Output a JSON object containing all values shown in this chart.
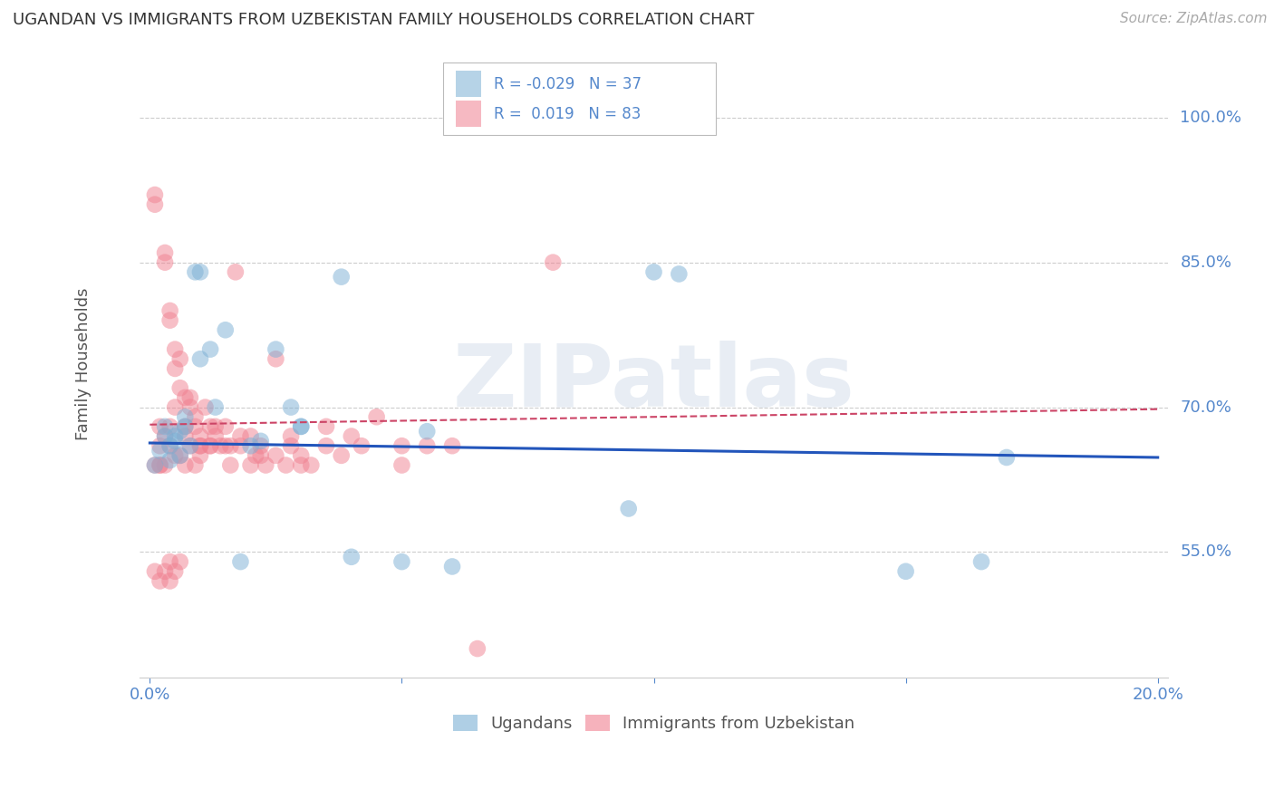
{
  "title": "UGANDAN VS IMMIGRANTS FROM UZBEKISTAN FAMILY HOUSEHOLDS CORRELATION CHART",
  "source": "Source: ZipAtlas.com",
  "ylabel": "Family Households",
  "watermark": "ZIPatlas",
  "ugandan_color": "#7bafd4",
  "uzbek_color": "#f08090",
  "trendline_ugandan_color": "#2255bb",
  "trendline_uzbek_color": "#cc4466",
  "grid_color": "#cccccc",
  "background_color": "#ffffff",
  "title_color": "#333333",
  "tick_color": "#5588cc",
  "xlim": [
    -0.002,
    0.202
  ],
  "ylim": [
    0.42,
    1.07
  ],
  "ytick_positions": [
    0.55,
    0.7,
    0.85,
    1.0
  ],
  "ytick_labels": [
    "55.0%",
    "70.0%",
    "85.0%",
    "100.0%"
  ],
  "xtick_positions": [
    0.0,
    0.05,
    0.1,
    0.15,
    0.2
  ],
  "xtick_labels": [
    "0.0%",
    "",
    "",
    "",
    "20.0%"
  ],
  "trendline_ugandan_x0": 0.0,
  "trendline_ugandan_x1": 0.2,
  "trendline_ugandan_y0": 0.663,
  "trendline_ugandan_y1": 0.648,
  "trendline_uzbek_x0": 0.0,
  "trendline_uzbek_x1": 0.2,
  "trendline_uzbek_y0": 0.682,
  "trendline_uzbek_y1": 0.698,
  "ugandan_x": [
    0.001,
    0.002,
    0.003,
    0.003,
    0.004,
    0.004,
    0.005,
    0.005,
    0.006,
    0.006,
    0.007,
    0.007,
    0.008,
    0.009,
    0.01,
    0.01,
    0.012,
    0.013,
    0.015,
    0.018,
    0.02,
    0.022,
    0.025,
    0.028,
    0.03,
    0.03,
    0.038,
    0.04,
    0.05,
    0.055,
    0.06,
    0.095,
    0.1,
    0.105,
    0.15,
    0.165,
    0.17
  ],
  "ugandan_y": [
    0.64,
    0.655,
    0.67,
    0.68,
    0.66,
    0.645,
    0.665,
    0.67,
    0.675,
    0.65,
    0.68,
    0.69,
    0.66,
    0.84,
    0.84,
    0.75,
    0.76,
    0.7,
    0.78,
    0.54,
    0.66,
    0.665,
    0.76,
    0.7,
    0.68,
    0.68,
    0.835,
    0.545,
    0.54,
    0.675,
    0.535,
    0.595,
    0.84,
    0.838,
    0.53,
    0.54,
    0.648
  ],
  "uzbek_x": [
    0.001,
    0.001,
    0.001,
    0.002,
    0.002,
    0.002,
    0.003,
    0.003,
    0.003,
    0.004,
    0.004,
    0.004,
    0.004,
    0.005,
    0.005,
    0.005,
    0.005,
    0.006,
    0.006,
    0.007,
    0.007,
    0.008,
    0.008,
    0.009,
    0.009,
    0.01,
    0.01,
    0.011,
    0.012,
    0.012,
    0.013,
    0.014,
    0.015,
    0.016,
    0.017,
    0.018,
    0.02,
    0.021,
    0.022,
    0.023,
    0.025,
    0.027,
    0.028,
    0.03,
    0.032,
    0.035,
    0.038,
    0.04,
    0.042,
    0.045,
    0.05,
    0.05,
    0.055,
    0.06,
    0.065,
    0.08,
    0.001,
    0.002,
    0.002,
    0.003,
    0.003,
    0.004,
    0.004,
    0.005,
    0.006,
    0.006,
    0.007,
    0.007,
    0.008,
    0.009,
    0.01,
    0.01,
    0.012,
    0.013,
    0.015,
    0.016,
    0.018,
    0.02,
    0.022,
    0.025,
    0.028,
    0.03,
    0.035
  ],
  "uzbek_y": [
    0.92,
    0.91,
    0.64,
    0.68,
    0.66,
    0.64,
    0.86,
    0.85,
    0.67,
    0.8,
    0.79,
    0.68,
    0.66,
    0.76,
    0.74,
    0.7,
    0.65,
    0.75,
    0.72,
    0.71,
    0.68,
    0.7,
    0.71,
    0.69,
    0.68,
    0.66,
    0.67,
    0.7,
    0.68,
    0.66,
    0.68,
    0.66,
    0.68,
    0.66,
    0.84,
    0.67,
    0.67,
    0.65,
    0.65,
    0.64,
    0.75,
    0.64,
    0.67,
    0.64,
    0.64,
    0.68,
    0.65,
    0.67,
    0.66,
    0.69,
    0.64,
    0.66,
    0.66,
    0.66,
    0.45,
    0.85,
    0.53,
    0.52,
    0.64,
    0.64,
    0.53,
    0.54,
    0.52,
    0.53,
    0.54,
    0.65,
    0.67,
    0.64,
    0.66,
    0.64,
    0.65,
    0.66,
    0.66,
    0.67,
    0.66,
    0.64,
    0.66,
    0.64,
    0.66,
    0.65,
    0.66,
    0.65,
    0.66
  ]
}
